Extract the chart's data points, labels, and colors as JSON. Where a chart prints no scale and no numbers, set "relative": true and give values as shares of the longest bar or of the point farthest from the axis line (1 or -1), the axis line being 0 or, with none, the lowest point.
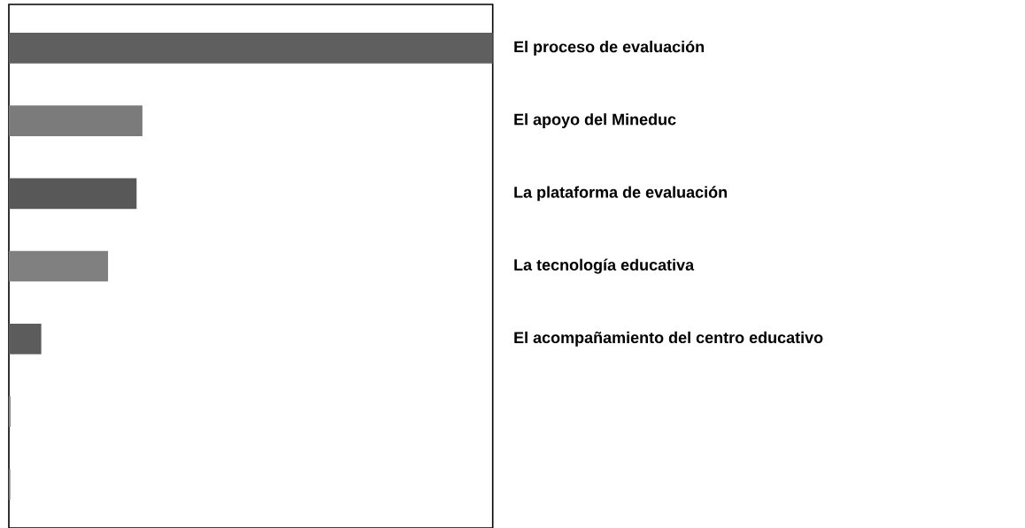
{
  "chart_data": {
    "type": "bar",
    "orientation": "horizontal",
    "relative": true,
    "categories": [
      "El proceso de evaluación",
      "El apoyo del Mineduc",
      "La plataforma de evaluación",
      "La tecnología educativa",
      "El acompañamiento del centro educativo",
      null,
      null
    ],
    "values": [
      1,
      0.276,
      0.264,
      0.205,
      0.067,
      0.0038,
      0.003
    ],
    "colors": [
      "#5f5f5f",
      "#7b7b7b",
      "#585858",
      "#808080",
      "#5c5c5c",
      "#8a8a8a",
      "#7a7a7a"
    ]
  }
}
